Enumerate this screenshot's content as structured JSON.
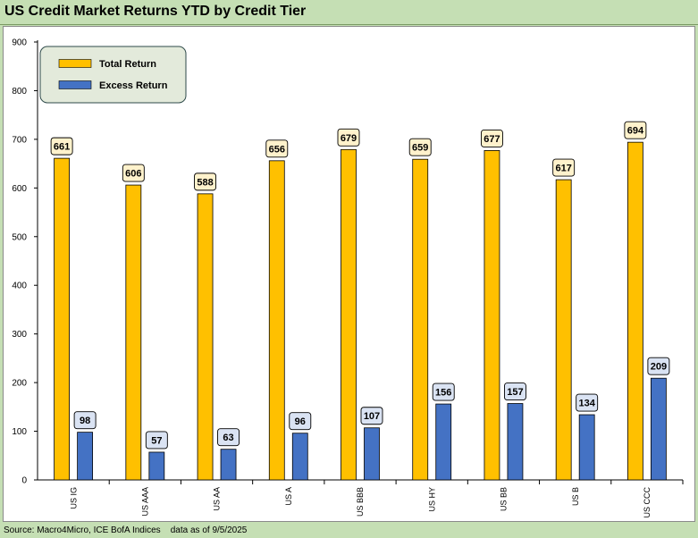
{
  "title": "US Credit Market Returns YTD by Credit Tier",
  "source": "Source: Macro4Micro, ICE BofA Indices    data as of 9/5/2025",
  "chart_data": {
    "type": "bar",
    "title": "US Credit Market Returns YTD by Credit Tier",
    "categories": [
      "US IG",
      "US AAA",
      "US AA",
      "US A",
      "US BBB",
      "US HY",
      "US BB",
      "US B",
      "US CCC"
    ],
    "series": [
      {
        "name": "Total Return",
        "color": "#ffc000",
        "label_fill": "#fff2cc",
        "values": [
          661,
          606,
          588,
          656,
          679,
          659,
          677,
          617,
          694
        ]
      },
      {
        "name": "Excess Return",
        "color": "#4472c4",
        "label_fill": "#dae3f3",
        "values": [
          98,
          57,
          63,
          96,
          107,
          156,
          157,
          134,
          209
        ]
      }
    ],
    "ylim": [
      0,
      900
    ],
    "yticks": [
      0,
      100,
      200,
      300,
      400,
      500,
      600,
      700,
      800,
      900
    ],
    "grid": false,
    "legend": "top-left",
    "data_labels": true
  }
}
